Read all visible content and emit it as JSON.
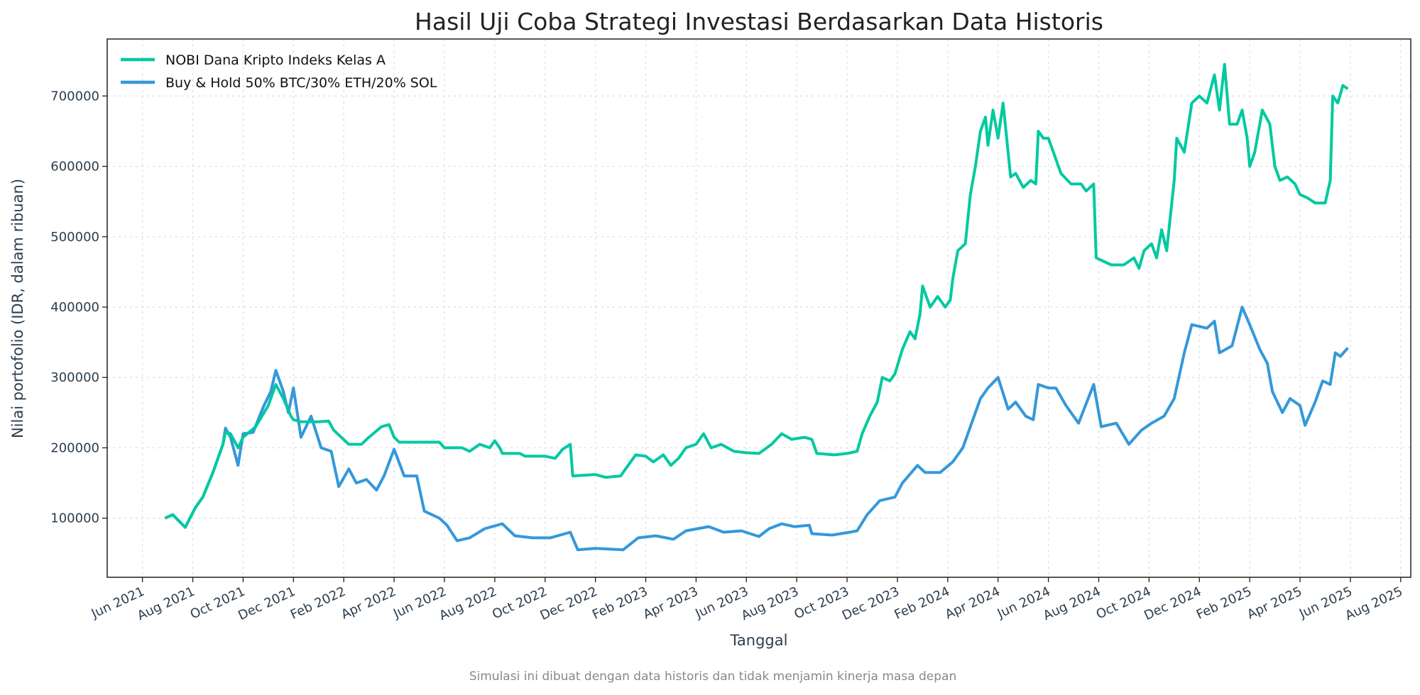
{
  "chart_data": {
    "type": "line",
    "title": "Hasil Uji Coba Strategi Investasi Berdasarkan Data Historis",
    "xlabel": "Tanggal",
    "ylabel": "Nilai portofolio (IDR, dalam ribuan)",
    "footnote": "Simulasi ini dibuat dengan data historis dan tidak menjamin kinerja masa depan",
    "x_unit": "months since Jun 2021",
    "xlim": [
      -1.4,
      50.4
    ],
    "ylim": [
      16000,
      781000
    ],
    "grid": true,
    "legend_position": "top-left",
    "x_ticks": [
      "Jun 2021",
      "Aug 2021",
      "Oct 2021",
      "Dec 2021",
      "Feb 2022",
      "Apr 2022",
      "Jun 2022",
      "Aug 2022",
      "Oct 2022",
      "Dec 2022",
      "Feb 2023",
      "Apr 2023",
      "Jun 2023",
      "Aug 2023",
      "Oct 2023",
      "Dec 2023",
      "Feb 2024",
      "Apr 2024",
      "Jun 2024",
      "Aug 2024",
      "Oct 2024",
      "Dec 2024",
      "Feb 2025",
      "Apr 2025",
      "Jun 2025",
      "Aug 2025"
    ],
    "y_ticks": [
      "100000",
      "200000",
      "300000",
      "400000",
      "500000",
      "600000",
      "700000"
    ],
    "y_tick_values": [
      100000,
      200000,
      300000,
      400000,
      500000,
      600000,
      700000
    ],
    "colors": {
      "nobi": "#00C9A0",
      "hold": "#3498DB"
    },
    "series": [
      {
        "name": "NOBI Dana Kripto Indeks Kelas A",
        "color": "#00C9A0",
        "points": [
          [
            0.9,
            100000
          ],
          [
            1.2,
            105000
          ],
          [
            1.7,
            87000
          ],
          [
            2.1,
            115000
          ],
          [
            2.4,
            130000
          ],
          [
            2.8,
            165000
          ],
          [
            3.2,
            205000
          ],
          [
            3.3,
            222000
          ],
          [
            3.5,
            220000
          ],
          [
            3.8,
            200000
          ],
          [
            4.0,
            215000
          ],
          [
            4.5,
            230000
          ],
          [
            5.0,
            260000
          ],
          [
            5.3,
            290000
          ],
          [
            5.6,
            270000
          ],
          [
            5.9,
            245000
          ],
          [
            6.0,
            240000
          ],
          [
            6.3,
            237000
          ],
          [
            7.0,
            237000
          ],
          [
            7.4,
            238000
          ],
          [
            7.6,
            225000
          ],
          [
            7.9,
            215000
          ],
          [
            8.2,
            205000
          ],
          [
            8.7,
            205000
          ],
          [
            9.0,
            215000
          ],
          [
            9.5,
            230000
          ],
          [
            9.8,
            233000
          ],
          [
            10.0,
            215000
          ],
          [
            10.2,
            208000
          ],
          [
            11.0,
            208000
          ],
          [
            11.8,
            208000
          ],
          [
            12.0,
            200000
          ],
          [
            12.7,
            200000
          ],
          [
            13.0,
            195000
          ],
          [
            13.4,
            205000
          ],
          [
            13.8,
            200000
          ],
          [
            14.0,
            210000
          ],
          [
            14.2,
            200000
          ],
          [
            14.3,
            192000
          ],
          [
            15.0,
            192000
          ],
          [
            15.2,
            188000
          ],
          [
            16.0,
            188000
          ],
          [
            16.4,
            185000
          ],
          [
            16.7,
            198000
          ],
          [
            17.0,
            205000
          ],
          [
            17.1,
            160000
          ],
          [
            18.0,
            162000
          ],
          [
            18.4,
            158000
          ],
          [
            19.0,
            160000
          ],
          [
            19.3,
            175000
          ],
          [
            19.6,
            190000
          ],
          [
            20.0,
            188000
          ],
          [
            20.3,
            180000
          ],
          [
            20.7,
            190000
          ],
          [
            21.0,
            175000
          ],
          [
            21.3,
            185000
          ],
          [
            21.6,
            200000
          ],
          [
            22.0,
            205000
          ],
          [
            22.3,
            220000
          ],
          [
            22.6,
            200000
          ],
          [
            23.0,
            205000
          ],
          [
            23.5,
            195000
          ],
          [
            24.0,
            193000
          ],
          [
            24.5,
            192000
          ],
          [
            25.0,
            205000
          ],
          [
            25.4,
            220000
          ],
          [
            25.8,
            212000
          ],
          [
            26.3,
            215000
          ],
          [
            26.6,
            212000
          ],
          [
            26.8,
            192000
          ],
          [
            27.5,
            190000
          ],
          [
            28.0,
            192000
          ],
          [
            28.4,
            195000
          ],
          [
            28.6,
            220000
          ],
          [
            28.9,
            245000
          ],
          [
            29.2,
            265000
          ],
          [
            29.4,
            300000
          ],
          [
            29.7,
            295000
          ],
          [
            29.9,
            305000
          ],
          [
            30.2,
            340000
          ],
          [
            30.5,
            365000
          ],
          [
            30.7,
            355000
          ],
          [
            30.9,
            390000
          ],
          [
            31.0,
            430000
          ],
          [
            31.3,
            400000
          ],
          [
            31.6,
            415000
          ],
          [
            31.9,
            400000
          ],
          [
            32.1,
            410000
          ],
          [
            32.2,
            440000
          ],
          [
            32.4,
            480000
          ],
          [
            32.7,
            490000
          ],
          [
            32.9,
            560000
          ],
          [
            33.1,
            600000
          ],
          [
            33.3,
            650000
          ],
          [
            33.5,
            670000
          ],
          [
            33.6,
            630000
          ],
          [
            33.8,
            680000
          ],
          [
            34.0,
            640000
          ],
          [
            34.2,
            690000
          ],
          [
            34.4,
            620000
          ],
          [
            34.5,
            585000
          ],
          [
            34.7,
            590000
          ],
          [
            35.0,
            570000
          ],
          [
            35.3,
            580000
          ],
          [
            35.5,
            575000
          ],
          [
            35.6,
            650000
          ],
          [
            35.8,
            640000
          ],
          [
            36.0,
            640000
          ],
          [
            36.2,
            620000
          ],
          [
            36.5,
            590000
          ],
          [
            36.9,
            575000
          ],
          [
            37.3,
            575000
          ],
          [
            37.5,
            565000
          ],
          [
            37.8,
            575000
          ],
          [
            37.9,
            470000
          ],
          [
            38.5,
            460000
          ],
          [
            39.0,
            460000
          ],
          [
            39.4,
            470000
          ],
          [
            39.6,
            455000
          ],
          [
            39.8,
            480000
          ],
          [
            40.1,
            490000
          ],
          [
            40.3,
            470000
          ],
          [
            40.5,
            510000
          ],
          [
            40.7,
            480000
          ],
          [
            41.0,
            580000
          ],
          [
            41.1,
            640000
          ],
          [
            41.4,
            620000
          ],
          [
            41.7,
            690000
          ],
          [
            42.0,
            700000
          ],
          [
            42.3,
            690000
          ],
          [
            42.6,
            730000
          ],
          [
            42.8,
            680000
          ],
          [
            43.0,
            745000
          ],
          [
            43.2,
            660000
          ],
          [
            43.5,
            660000
          ],
          [
            43.7,
            680000
          ],
          [
            43.9,
            640000
          ],
          [
            44.0,
            600000
          ],
          [
            44.2,
            620000
          ],
          [
            44.5,
            680000
          ],
          [
            44.8,
            660000
          ],
          [
            45.0,
            600000
          ],
          [
            45.2,
            580000
          ],
          [
            45.5,
            585000
          ],
          [
            45.8,
            575000
          ],
          [
            46.0,
            560000
          ],
          [
            46.3,
            555000
          ],
          [
            46.6,
            548000
          ],
          [
            47.0,
            548000
          ],
          [
            47.2,
            580000
          ],
          [
            47.3,
            700000
          ],
          [
            47.5,
            690000
          ],
          [
            47.7,
            715000
          ],
          [
            47.9,
            710000
          ]
        ]
      },
      {
        "name": "Buy & Hold 50% BTC/30% ETH/20% SOL",
        "color": "#3498DB",
        "points": [
          [
            0.9,
            100000
          ],
          [
            1.2,
            105000
          ],
          [
            1.7,
            87000
          ],
          [
            2.1,
            115000
          ],
          [
            2.4,
            130000
          ],
          [
            2.8,
            165000
          ],
          [
            3.2,
            205000
          ],
          [
            3.3,
            228000
          ],
          [
            3.5,
            215000
          ],
          [
            3.8,
            175000
          ],
          [
            4.0,
            220000
          ],
          [
            4.4,
            222000
          ],
          [
            4.8,
            258000
          ],
          [
            5.1,
            280000
          ],
          [
            5.3,
            310000
          ],
          [
            5.6,
            280000
          ],
          [
            5.8,
            250000
          ],
          [
            6.0,
            285000
          ],
          [
            6.3,
            215000
          ],
          [
            6.7,
            245000
          ],
          [
            7.1,
            200000
          ],
          [
            7.5,
            195000
          ],
          [
            7.8,
            145000
          ],
          [
            8.2,
            170000
          ],
          [
            8.5,
            150000
          ],
          [
            8.9,
            155000
          ],
          [
            9.3,
            140000
          ],
          [
            9.6,
            160000
          ],
          [
            10.0,
            198000
          ],
          [
            10.4,
            160000
          ],
          [
            10.9,
            160000
          ],
          [
            11.2,
            110000
          ],
          [
            11.8,
            100000
          ],
          [
            12.1,
            90000
          ],
          [
            12.5,
            68000
          ],
          [
            13.0,
            72000
          ],
          [
            13.6,
            85000
          ],
          [
            14.3,
            92000
          ],
          [
            14.8,
            75000
          ],
          [
            15.5,
            72000
          ],
          [
            16.2,
            72000
          ],
          [
            17.0,
            80000
          ],
          [
            17.3,
            55000
          ],
          [
            18.0,
            57000
          ],
          [
            19.1,
            55000
          ],
          [
            19.7,
            72000
          ],
          [
            20.4,
            75000
          ],
          [
            21.1,
            70000
          ],
          [
            21.6,
            82000
          ],
          [
            22.5,
            88000
          ],
          [
            23.1,
            80000
          ],
          [
            23.8,
            82000
          ],
          [
            24.5,
            74000
          ],
          [
            24.9,
            85000
          ],
          [
            25.4,
            92000
          ],
          [
            25.9,
            88000
          ],
          [
            26.5,
            90000
          ],
          [
            26.6,
            78000
          ],
          [
            27.4,
            76000
          ],
          [
            28.1,
            80000
          ],
          [
            28.4,
            82000
          ],
          [
            28.8,
            105000
          ],
          [
            29.3,
            125000
          ],
          [
            29.9,
            130000
          ],
          [
            30.2,
            150000
          ],
          [
            30.8,
            175000
          ],
          [
            31.1,
            165000
          ],
          [
            31.7,
            165000
          ],
          [
            32.2,
            180000
          ],
          [
            32.6,
            200000
          ],
          [
            32.9,
            230000
          ],
          [
            33.3,
            270000
          ],
          [
            33.6,
            285000
          ],
          [
            34.0,
            300000
          ],
          [
            34.4,
            255000
          ],
          [
            34.7,
            265000
          ],
          [
            35.1,
            245000
          ],
          [
            35.4,
            240000
          ],
          [
            35.6,
            290000
          ],
          [
            36.0,
            285000
          ],
          [
            36.3,
            285000
          ],
          [
            36.7,
            260000
          ],
          [
            37.2,
            235000
          ],
          [
            37.8,
            290000
          ],
          [
            38.1,
            230000
          ],
          [
            38.7,
            235000
          ],
          [
            39.2,
            205000
          ],
          [
            39.7,
            225000
          ],
          [
            40.1,
            235000
          ],
          [
            40.6,
            245000
          ],
          [
            41.0,
            270000
          ],
          [
            41.4,
            335000
          ],
          [
            41.7,
            375000
          ],
          [
            42.3,
            370000
          ],
          [
            42.6,
            380000
          ],
          [
            42.8,
            335000
          ],
          [
            43.3,
            345000
          ],
          [
            43.7,
            400000
          ],
          [
            44.0,
            375000
          ],
          [
            44.4,
            340000
          ],
          [
            44.7,
            320000
          ],
          [
            44.9,
            280000
          ],
          [
            45.3,
            250000
          ],
          [
            45.6,
            270000
          ],
          [
            46.0,
            260000
          ],
          [
            46.2,
            232000
          ],
          [
            46.6,
            265000
          ],
          [
            46.9,
            295000
          ],
          [
            47.2,
            290000
          ],
          [
            47.4,
            335000
          ],
          [
            47.6,
            330000
          ],
          [
            47.9,
            342000
          ]
        ]
      }
    ]
  }
}
